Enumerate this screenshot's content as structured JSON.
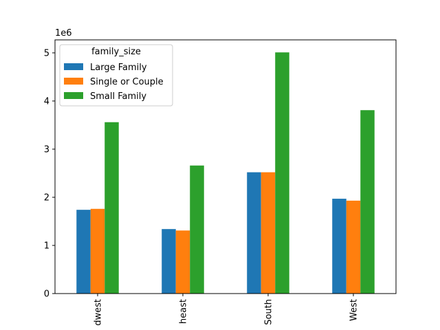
{
  "chart_data": {
    "type": "bar",
    "title": "",
    "xlabel": "",
    "ylabel": "",
    "y_scale_label": "1e6",
    "ylim": [
      0,
      5.27
    ],
    "yticks": [
      0,
      1,
      2,
      3,
      4,
      5
    ],
    "ytick_labels": [
      "0",
      "1",
      "2",
      "3",
      "4",
      "5"
    ],
    "categories": [
      "Midwest",
      "Northeast",
      "South",
      "West"
    ],
    "category_labels_visible": [
      "dwest",
      "heast",
      "South",
      "West"
    ],
    "legend": {
      "title": "family_size",
      "placement": "upper-left"
    },
    "series": [
      {
        "name": "Large Family",
        "color": "#1f77b4",
        "values": [
          1.74,
          1.34,
          2.52,
          1.97
        ]
      },
      {
        "name": "Single or Couple",
        "color": "#ff7f0e",
        "values": [
          1.76,
          1.31,
          2.52,
          1.93
        ]
      },
      {
        "name": "Small Family",
        "color": "#2ca02c",
        "values": [
          3.56,
          2.66,
          5.01,
          3.81
        ]
      }
    ]
  }
}
